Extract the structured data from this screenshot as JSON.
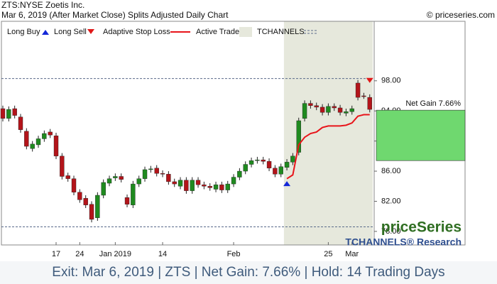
{
  "chart_data": {
    "type": "candlestick",
    "title": "ZTS:NYSE Zoetis Inc.",
    "subtitle": "Mar 6, 2019 (After Market Close)  Splits Adjusted Daily Chart",
    "copyright": "© priceseries.com",
    "legend": [
      "Long Buy",
      "Long Sell",
      "Adaptive Stop Loss",
      "Active Trade",
      "TCHANNELS"
    ],
    "watermark": "priceSeries",
    "watermark_sub": "TCHANNELS® Research",
    "footer": "Exit: Mar 6, 2019 | ZTS | Net Gain: 7.66% | Hold: 14 Trading Days",
    "colors": {
      "up": "#1f8a1f",
      "down": "#b3141a",
      "stop": "#e8141a",
      "buy": "#1428d8",
      "sell": "#e01818",
      "active": "#e6e8dc",
      "gain": "#6fd86f",
      "channel": "#5a6a8a"
    },
    "xlim": [
      -0.24,
      62.75
    ],
    "xticks": [
      {
        "value": 9,
        "label": "17"
      },
      {
        "value": 13,
        "label": "24"
      },
      {
        "value": 19,
        "label": "Jan 2019"
      },
      {
        "value": 27,
        "label": "14"
      },
      {
        "value": 39,
        "label": "Feb"
      },
      {
        "value": 55,
        "label": "25"
      },
      {
        "value": 59,
        "label": "Mar"
      }
    ],
    "ylim": [
      76.2,
      105.9
    ],
    "yticks": [
      {
        "value": 78,
        "label": "78.00"
      },
      {
        "value": 82,
        "label": "82.00"
      },
      {
        "value": 86,
        "label": "86.00"
      },
      {
        "value": 90,
        "label": "90.00"
      },
      {
        "value": 94,
        "label": "94.00"
      },
      {
        "value": 98,
        "label": "98.00"
      }
    ],
    "open": [
      94.3,
      93.0,
      94.3,
      93.2,
      91.3,
      89.0,
      89.5,
      90.3,
      91.2,
      90.7,
      88.0,
      85.4,
      85.0,
      83.2,
      82.4,
      81.6,
      79.8,
      82.8,
      84.4,
      85.1,
      85.3,
      82.5,
      81.5,
      84.3,
      85.0,
      86.2,
      86.4,
      85.7,
      85.6,
      84.6,
      84.0,
      84.8,
      83.4,
      84.8,
      84.2,
      84.0,
      83.6,
      84.2,
      83.5,
      84.3,
      85.2,
      86.0,
      86.9,
      87.4,
      87.5,
      87.3,
      86.4,
      85.6,
      86.5,
      87.2,
      88.5,
      93.0,
      95.0,
      94.7,
      94.5,
      93.8,
      94.6,
      94.4,
      93.7,
      93.9,
      97.7,
      96.0,
      95.8
    ],
    "high": [
      94.7,
      94.6,
      94.7,
      93.6,
      91.7,
      90.0,
      90.7,
      91.4,
      91.6,
      91.1,
      88.4,
      85.8,
      85.4,
      83.6,
      82.8,
      82.0,
      83.2,
      84.9,
      85.4,
      85.7,
      85.7,
      82.9,
      84.7,
      85.4,
      86.6,
      86.7,
      86.8,
      86.1,
      86.0,
      85.0,
      85.2,
      85.2,
      85.2,
      85.2,
      84.6,
      84.4,
      84.6,
      84.6,
      84.7,
      85.6,
      86.4,
      87.3,
      87.8,
      87.9,
      87.9,
      87.7,
      86.8,
      87.0,
      87.6,
      88.4,
      93.1,
      95.4,
      95.4,
      95.1,
      94.9,
      95.0,
      95.0,
      94.8,
      94.3,
      94.7,
      98.1,
      96.4,
      96.2
    ],
    "low": [
      92.6,
      92.6,
      93.0,
      91.1,
      88.9,
      88.6,
      89.1,
      89.9,
      90.4,
      87.6,
      84.9,
      84.6,
      82.8,
      81.8,
      81.1,
      79.2,
      79.4,
      82.4,
      84.0,
      84.7,
      84.5,
      81.2,
      81.1,
      83.9,
      84.6,
      85.8,
      85.3,
      85.2,
      84.2,
      83.9,
      83.6,
      83.0,
      83.0,
      83.8,
      83.6,
      83.4,
      83.2,
      83.1,
      83.1,
      83.9,
      84.8,
      85.6,
      86.5,
      87.0,
      86.9,
      86.0,
      85.2,
      85.2,
      86.1,
      86.8,
      88.1,
      92.6,
      94.3,
      94.1,
      93.4,
      93.4,
      94.0,
      93.4,
      93.3,
      93.5,
      95.4,
      95.6,
      93.8
    ],
    "close": [
      93.0,
      94.2,
      93.4,
      91.5,
      89.3,
      89.6,
      90.3,
      91.0,
      90.8,
      88.0,
      85.3,
      85.0,
      83.2,
      82.2,
      81.5,
      79.6,
      82.8,
      84.5,
      85.0,
      85.3,
      84.9,
      81.6,
      84.3,
      85.0,
      86.2,
      86.3,
      85.7,
      85.6,
      84.6,
      84.3,
      84.8,
      83.4,
      84.8,
      84.2,
      84.0,
      83.8,
      84.2,
      83.5,
      84.3,
      85.2,
      86.0,
      86.9,
      87.4,
      87.5,
      87.3,
      86.4,
      85.6,
      86.6,
      87.2,
      88.0,
      92.7,
      95.0,
      94.7,
      94.5,
      93.8,
      94.6,
      94.4,
      93.8,
      93.9,
      94.3,
      95.8,
      95.9,
      94.2
    ],
    "stop": [
      null,
      null,
      null,
      null,
      null,
      null,
      null,
      null,
      null,
      null,
      null,
      null,
      null,
      null,
      null,
      null,
      null,
      null,
      null,
      null,
      null,
      null,
      null,
      null,
      null,
      null,
      null,
      null,
      null,
      null,
      null,
      null,
      null,
      null,
      null,
      null,
      null,
      null,
      null,
      null,
      null,
      null,
      null,
      null,
      null,
      null,
      null,
      null,
      85.0,
      85.5,
      89.5,
      90.5,
      91.0,
      91.2,
      91.8,
      92.0,
      92.0,
      92.0,
      92.1,
      92.4,
      93.3,
      93.5,
      93.5
    ],
    "tchannels": [
      98.3,
      78.6
    ],
    "active_trade": [
      48,
      62
    ],
    "buy": {
      "index": 48,
      "value": 84.3
    },
    "sell": {
      "index": 62,
      "value": 98.1
    },
    "net_gain": {
      "label": "Net Gain 7.66%",
      "entry": 87.4,
      "exit": 94.1
    }
  }
}
